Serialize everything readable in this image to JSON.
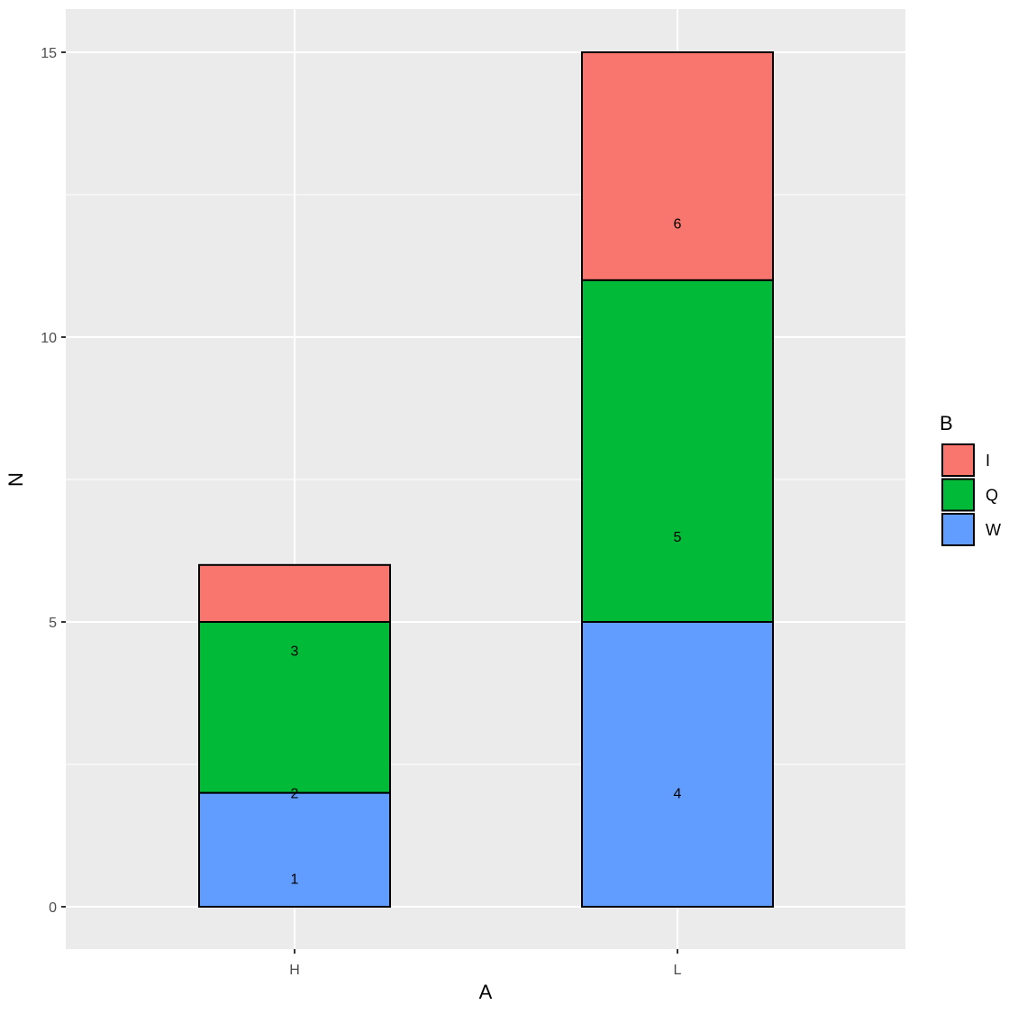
{
  "chart_data": {
    "type": "bar",
    "stacked": true,
    "title": "",
    "xlabel": "A",
    "ylabel": "N",
    "categories": [
      "H",
      "L"
    ],
    "series": [
      {
        "name": "W",
        "color": "#619CFF",
        "values": [
          2,
          5
        ]
      },
      {
        "name": "Q",
        "color": "#00BA38",
        "values": [
          3,
          6
        ]
      },
      {
        "name": "I",
        "color": "#F8766D",
        "values": [
          1,
          4
        ]
      }
    ],
    "bar_labels": [
      {
        "category": "H",
        "text": "1",
        "y": 0.5
      },
      {
        "category": "H",
        "text": "2",
        "y": 2
      },
      {
        "category": "H",
        "text": "3",
        "y": 4.5
      },
      {
        "category": "L",
        "text": "4",
        "y": 2
      },
      {
        "category": "L",
        "text": "5",
        "y": 6.5
      },
      {
        "category": "L",
        "text": "6",
        "y": 12
      }
    ],
    "yticks": [
      0,
      5,
      10,
      15
    ],
    "ylim": [
      -0.75,
      15.75
    ],
    "grid": true,
    "legend": {
      "title": "B",
      "position": "right",
      "entries": [
        "I",
        "Q",
        "W"
      ]
    }
  }
}
